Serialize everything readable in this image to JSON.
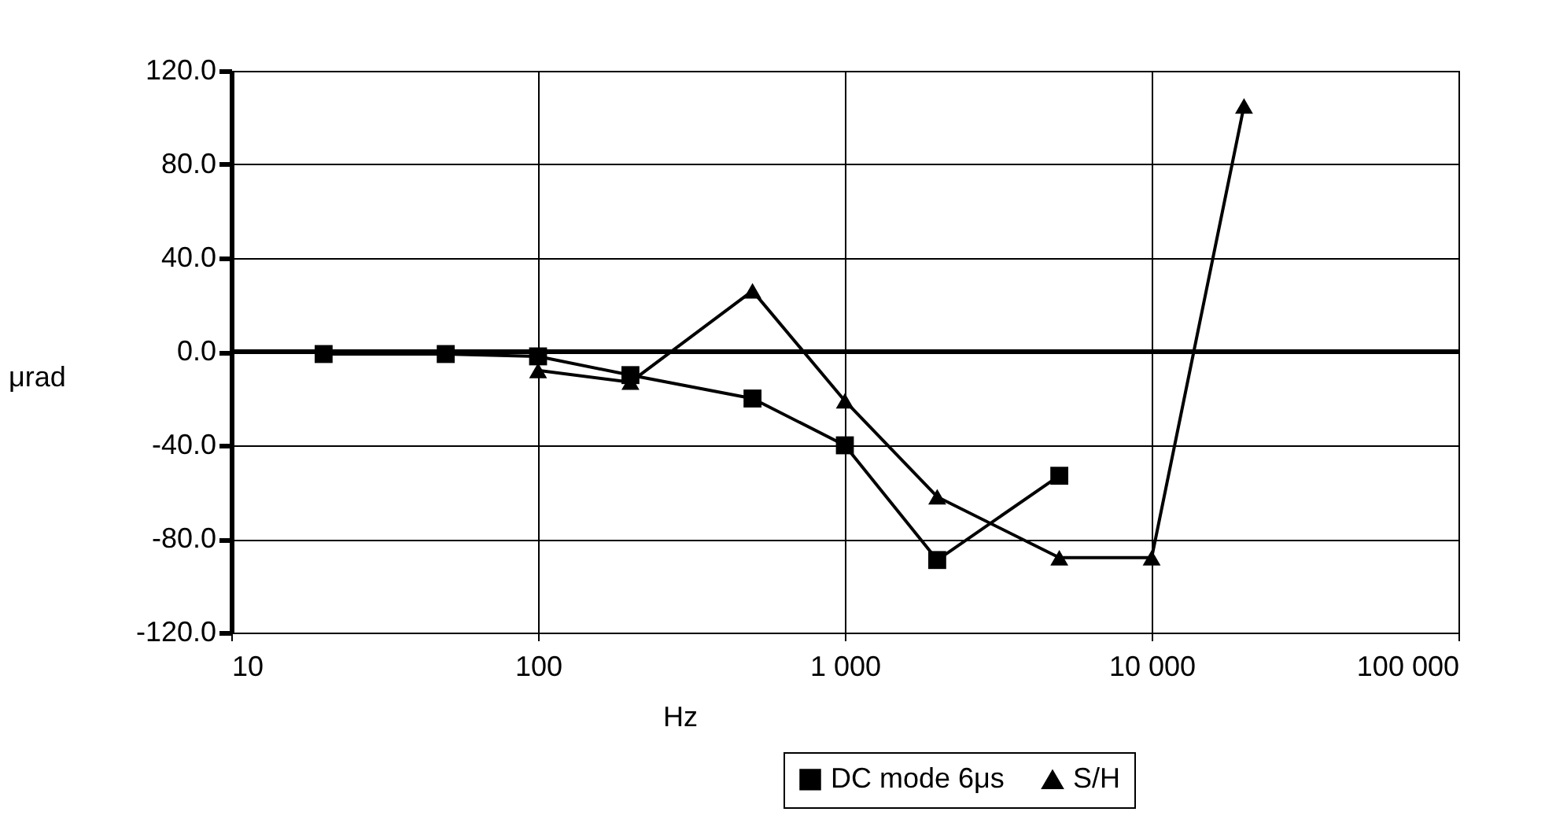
{
  "chart_data": {
    "type": "line",
    "xlabel": "Hz",
    "ylabel": "μrad",
    "xlim": [
      10,
      100000
    ],
    "xticks": [
      10,
      100,
      {
        "value": 1000,
        "label": "1 000"
      },
      {
        "value": 10000,
        "label": "10 000"
      },
      {
        "value": 100000,
        "label": "100 000"
      }
    ],
    "ylim": [
      -120,
      120
    ],
    "yticks": [
      {
        "value": -120,
        "label": "-120.0"
      },
      {
        "value": -80,
        "label": "-80.0"
      },
      {
        "value": -40,
        "label": "-40.0"
      },
      {
        "value": 0,
        "label": "0.0"
      },
      {
        "value": 40,
        "label": "40.0"
      },
      {
        "value": 80,
        "label": "80.0"
      },
      {
        "value": 120,
        "label": "120.0"
      }
    ],
    "log": "x",
    "grid": true,
    "legend": "bottom",
    "ref_lines": [
      {
        "axis": "y",
        "value": 0
      }
    ],
    "series": [
      {
        "name": "DC mode 6μs",
        "color": "#000000",
        "marker": "square",
        "x": [
          20,
          50,
          100,
          200,
          500,
          1000,
          2000,
          5000
        ],
        "values": [
          -1,
          -1,
          -2,
          -10,
          -20,
          -40,
          -89,
          -53
        ]
      },
      {
        "name": "S/H",
        "color": "#000000",
        "marker": "triangle",
        "x": [
          100,
          200,
          500,
          1000,
          2000,
          5000,
          10000,
          20000
        ],
        "values": [
          -8,
          -13,
          26,
          -21,
          -62,
          -88,
          -88,
          105
        ]
      }
    ]
  }
}
